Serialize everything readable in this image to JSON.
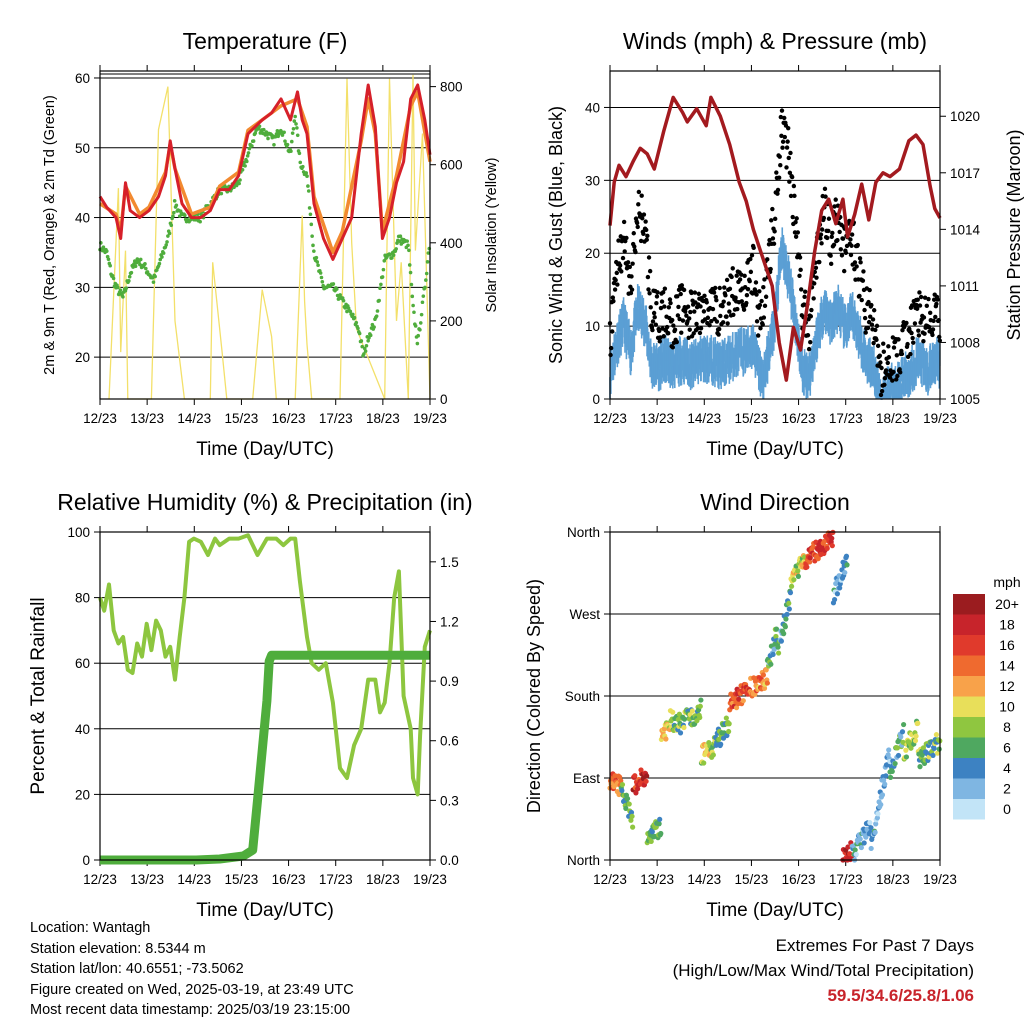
{
  "colors": {
    "temp_2m": "#d6202a",
    "temp_9m": "#f28a30",
    "dewpoint": "#4fad3c",
    "insolation": "#f3e06a",
    "wind_sustained": "#5b9fd4",
    "wind_gust": "#000000",
    "pressure": "#a31a1f",
    "humidity": "#8dc63f",
    "precip": "#4fad3c",
    "extremes_text": "#c8242b"
  },
  "time_ticks": [
    "12/23",
    "13/23",
    "14/23",
    "15/23",
    "16/23",
    "17/23",
    "18/23",
    "19/23"
  ],
  "chart_data": [
    {
      "type": "line",
      "title": "Temperature (F)",
      "xlabel": "Time (Day/UTC)",
      "ylabel": "2m & 9m T (Red, Orange) & 2m Td (Green)",
      "y2label": "Solar Insolation (Yellow)",
      "x_range_days": [
        12.96,
        19.96
      ],
      "ylim": [
        14,
        61
      ],
      "y_ticks": [
        20,
        30,
        40,
        50,
        60
      ],
      "y2lim": [
        0,
        840
      ],
      "y2_ticks": [
        0,
        200,
        400,
        600,
        800
      ],
      "series": [
        {
          "key": "t2m",
          "x": [
            12.96,
            13.1,
            13.3,
            13.4,
            13.5,
            13.6,
            13.8,
            14.0,
            14.2,
            14.35,
            14.45,
            14.55,
            14.7,
            14.9,
            15.1,
            15.3,
            15.5,
            15.7,
            15.9,
            16.1,
            16.4,
            16.6,
            16.8,
            17.0,
            17.15,
            17.25,
            17.35,
            17.5,
            17.7,
            17.9,
            18.1,
            18.3,
            18.5,
            18.65,
            18.8,
            18.95,
            19.1,
            19.25,
            19.4,
            19.55,
            19.7,
            19.85,
            19.96
          ],
          "y": [
            43,
            41.5,
            40,
            37,
            45,
            41,
            40,
            41,
            43,
            46,
            51,
            47,
            42,
            40,
            40,
            41,
            44,
            44,
            46,
            52,
            54,
            55,
            57,
            54,
            58,
            54,
            52,
            42,
            37,
            34,
            37,
            40,
            52,
            59,
            53,
            37,
            40,
            45,
            48,
            57,
            59,
            54,
            49
          ]
        },
        {
          "key": "t9m",
          "x": [
            12.96,
            13.3,
            13.4,
            13.5,
            13.8,
            14.0,
            14.35,
            14.45,
            14.55,
            14.9,
            15.3,
            15.5,
            15.9,
            16.1,
            16.4,
            16.8,
            17.15,
            17.35,
            17.5,
            17.9,
            18.1,
            18.5,
            18.65,
            18.8,
            18.95,
            19.25,
            19.55,
            19.7,
            19.96
          ],
          "y": [
            42,
            40.5,
            38,
            44.5,
            40.5,
            41.5,
            46.5,
            50.5,
            47,
            40.5,
            41.5,
            44.5,
            46.5,
            52.5,
            54,
            56,
            57,
            53,
            43,
            35,
            38,
            51,
            57,
            52,
            38,
            46,
            56,
            58,
            48
          ]
        },
        {
          "key": "td2m",
          "x": [
            12.96,
            13.1,
            13.2,
            13.3,
            13.45,
            13.6,
            13.75,
            13.9,
            14.1,
            14.25,
            14.4,
            14.55,
            14.7,
            14.9,
            15.1,
            15.3,
            15.5,
            15.7,
            15.9,
            16.1,
            16.3,
            16.5,
            16.65,
            16.8,
            17.0,
            17.1,
            17.2,
            17.35,
            17.5,
            17.7,
            17.9,
            18.1,
            18.3,
            18.45,
            18.55,
            18.65,
            18.8,
            19.0,
            19.2,
            19.3,
            19.5,
            19.6,
            19.7,
            19.85,
            19.96
          ],
          "y": [
            36,
            35,
            32,
            30,
            28.5,
            32,
            34,
            33,
            31,
            34,
            37,
            42,
            40,
            40,
            40,
            42,
            44,
            44,
            45,
            49,
            53,
            52,
            51,
            53,
            49,
            55,
            48,
            46,
            35,
            30,
            30,
            28,
            26,
            24,
            20,
            23,
            25,
            34,
            35,
            37,
            36,
            27,
            22,
            30,
            37
          ]
        },
        {
          "key": "insolation",
          "x": [
            13.15,
            13.35,
            13.4,
            13.5,
            13.55,
            14.05,
            14.2,
            14.4,
            14.55,
            14.75,
            15.3,
            15.35,
            15.55,
            15.65,
            16.2,
            16.4,
            16.6,
            16.7,
            17.1,
            17.25,
            17.3,
            17.35,
            17.45,
            18.05,
            18.2,
            18.3,
            18.4,
            19.0,
            19.1,
            19.25,
            19.35,
            19.5,
            19.6,
            19.65,
            19.8,
            19.96
          ],
          "y": [
            0,
            540,
            120,
            380,
            0,
            0,
            690,
            800,
            200,
            0,
            0,
            350,
            120,
            0,
            0,
            280,
            160,
            0,
            0,
            470,
            250,
            140,
            0,
            0,
            820,
            400,
            180,
            0,
            820,
            200,
            350,
            0,
            830,
            380,
            680,
            0
          ]
        }
      ]
    },
    {
      "type": "line",
      "title": "Winds (mph) & Pressure (mb)",
      "xlabel": "Time (Day/UTC)",
      "ylabel": "Sonic Wind & Gust (Blue, Black)",
      "y2label": "Station Pressure (Maroon)",
      "x_range_days": [
        12.96,
        19.96
      ],
      "ylim": [
        0,
        45
      ],
      "y_ticks": [
        0,
        10,
        20,
        30,
        40
      ],
      "y2lim": [
        1005,
        1022.4
      ],
      "y2_ticks": [
        1005,
        1008,
        1011,
        1014,
        1017,
        1020
      ],
      "series": [
        {
          "key": "gust",
          "x": [
            12.96,
            13.1,
            13.25,
            13.4,
            13.55,
            13.7,
            13.85,
            14.0,
            14.15,
            14.3,
            14.5,
            14.7,
            14.9,
            15.1,
            15.3,
            15.5,
            15.7,
            15.85,
            16.0,
            16.1,
            16.2,
            16.3,
            16.45,
            16.6,
            16.75,
            16.9,
            17.05,
            17.2,
            17.35,
            17.5,
            17.65,
            17.8,
            17.95,
            18.1,
            18.25,
            18.4,
            18.55,
            18.7,
            18.85,
            19.0,
            19.15,
            19.3,
            19.5,
            19.7,
            19.85,
            19.96
          ],
          "y": [
            8,
            18,
            22,
            15,
            26,
            24,
            12,
            11,
            12,
            10,
            13,
            11,
            12,
            13,
            12,
            14,
            16,
            15,
            18,
            12,
            12,
            18,
            25,
            38,
            34,
            24,
            12,
            10,
            20,
            26,
            22,
            25,
            20,
            22,
            17,
            12,
            11,
            3,
            6,
            5,
            7,
            9,
            12,
            10,
            12,
            10
          ]
        },
        {
          "key": "sustained",
          "x": [
            12.96,
            13.1,
            13.25,
            13.4,
            13.55,
            13.7,
            13.85,
            14.0,
            14.15,
            14.3,
            14.5,
            14.7,
            14.9,
            15.1,
            15.3,
            15.5,
            15.7,
            15.85,
            16.0,
            16.1,
            16.2,
            16.3,
            16.45,
            16.6,
            16.75,
            16.9,
            17.05,
            17.2,
            17.35,
            17.5,
            17.65,
            17.8,
            17.95,
            18.1,
            18.25,
            18.4,
            18.55,
            18.7,
            18.85,
            19.0,
            19.15,
            19.3,
            19.5,
            19.7,
            19.85,
            19.96
          ],
          "y": [
            5,
            9,
            12,
            8,
            14,
            12,
            6,
            6,
            7,
            6,
            7,
            6,
            7,
            7,
            6,
            7,
            8,
            8,
            9,
            6,
            4,
            7,
            12,
            22,
            18,
            12,
            5,
            5,
            10,
            14,
            12,
            14,
            11,
            13,
            10,
            7,
            6,
            1,
            3,
            3,
            4,
            5,
            7,
            5,
            7,
            6
          ]
        },
        {
          "key": "pressure",
          "x": [
            12.96,
            13.05,
            13.15,
            13.3,
            13.45,
            13.6,
            13.75,
            13.9,
            14.1,
            14.3,
            14.5,
            14.6,
            14.8,
            15.0,
            15.1,
            15.3,
            15.5,
            15.7,
            15.85,
            16.0,
            16.2,
            16.4,
            16.55,
            16.7,
            16.85,
            17.0,
            17.15,
            17.3,
            17.45,
            17.6,
            17.75,
            17.9,
            18.0,
            18.15,
            18.3,
            18.45,
            18.6,
            18.75,
            18.9,
            19.1,
            19.3,
            19.45,
            19.6,
            19.75,
            19.85,
            19.96
          ],
          "y": [
            1014.2,
            1016.5,
            1017.4,
            1016.8,
            1017.6,
            1018.3,
            1018.0,
            1017.2,
            1019.2,
            1021.0,
            1020.2,
            1019.7,
            1020.4,
            1019.5,
            1021.0,
            1020.0,
            1018.5,
            1016.5,
            1015.5,
            1014.0,
            1012.5,
            1011.0,
            1008.0,
            1006.0,
            1008.8,
            1007.6,
            1010.0,
            1012.8,
            1015.0,
            1015.6,
            1014.3,
            1015.6,
            1013.6,
            1014.8,
            1016.4,
            1014.5,
            1016.5,
            1017.0,
            1016.8,
            1017.2,
            1018.7,
            1019.0,
            1018.5,
            1016.3,
            1015.1,
            1014.6
          ]
        }
      ]
    },
    {
      "type": "line",
      "title": "Relative Humidity (%) & Precipitation (in)",
      "xlabel": "Time (Day/UTC)",
      "ylabel": "Percent & Total Rainfall",
      "x_range_days": [
        12.96,
        19.96
      ],
      "ylim": [
        0,
        100
      ],
      "y_ticks": [
        0,
        20,
        40,
        60,
        80,
        100
      ],
      "y2lim": [
        0,
        1.65
      ],
      "y2_ticks": [
        "0.0",
        "0.3",
        "0.6",
        "0.9",
        "1.2",
        "1.5"
      ],
      "series": [
        {
          "key": "rh",
          "x": [
            12.96,
            13.05,
            13.15,
            13.25,
            13.35,
            13.45,
            13.55,
            13.65,
            13.75,
            13.85,
            13.95,
            14.05,
            14.15,
            14.25,
            14.35,
            14.45,
            14.55,
            14.65,
            14.75,
            14.85,
            14.95,
            15.1,
            15.25,
            15.4,
            15.5,
            15.7,
            15.9,
            16.1,
            16.3,
            16.5,
            16.7,
            16.85,
            17.0,
            17.1,
            17.2,
            17.35,
            17.45,
            17.6,
            17.75,
            17.9,
            18.05,
            18.2,
            18.35,
            18.5,
            18.65,
            18.8,
            18.9,
            19.0,
            19.1,
            19.2,
            19.3,
            19.4,
            19.55,
            19.6,
            19.7,
            19.75,
            19.85,
            19.96
          ],
          "y": [
            80,
            76,
            84,
            70,
            66,
            68,
            58,
            57,
            66,
            62,
            72,
            64,
            73,
            70,
            62,
            65,
            55,
            68,
            80,
            97,
            98,
            97,
            93,
            98,
            96,
            98,
            98,
            99,
            93,
            98,
            98,
            96,
            98,
            98,
            85,
            68,
            60,
            58,
            60,
            48,
            28,
            25,
            35,
            40,
            55,
            55,
            45,
            48,
            60,
            80,
            88,
            50,
            40,
            25,
            20,
            38,
            65,
            70
          ]
        },
        {
          "key": "precip",
          "x": [
            12.96,
            14.0,
            15.0,
            15.5,
            16.0,
            16.2,
            16.3,
            16.4,
            16.5,
            16.55,
            16.6,
            19.96
          ],
          "y": [
            0.0,
            0.0,
            0.0,
            0.005,
            0.02,
            0.05,
            0.3,
            0.55,
            0.8,
            1.0,
            1.03,
            1.03
          ]
        }
      ]
    },
    {
      "type": "scatter",
      "title": "Wind Direction",
      "xlabel": "Time (Day/UTC)",
      "ylabel": "Direction (Colored By Speed)",
      "x_range_days": [
        12.96,
        19.96
      ],
      "ylim": [
        0,
        360
      ],
      "y_ticks": [
        "North",
        "East",
        "South",
        "West",
        "North"
      ],
      "legend_title": "mph",
      "legend_labels": [
        "20+",
        "18",
        "16",
        "14",
        "12",
        "10",
        "8",
        "6",
        "4",
        "2",
        "0"
      ],
      "legend_colors": [
        "#9b1c1f",
        "#c7242b",
        "#e03a2c",
        "#ef6a2f",
        "#f8a24a",
        "#e8df5a",
        "#8fc640",
        "#4fa860",
        "#3d82c2",
        "#7fb6e2",
        "#c2e4f7"
      ],
      "segments": [
        {
          "x0": 12.96,
          "x1": 13.2,
          "dir0": 90,
          "dir1": 80,
          "speed": 14
        },
        {
          "x0": 13.2,
          "x1": 13.45,
          "dir0": 75,
          "dir1": 45,
          "speed": 6
        },
        {
          "x0": 13.45,
          "x1": 13.75,
          "dir0": 80,
          "dir1": 95,
          "speed": 17
        },
        {
          "x0": 13.75,
          "x1": 14.05,
          "dir0": 20,
          "dir1": 40,
          "speed": 6
        },
        {
          "x0": 14.05,
          "x1": 14.3,
          "dir0": 130,
          "dir1": 160,
          "speed": 10
        },
        {
          "x0": 14.3,
          "x1": 14.9,
          "dir0": 145,
          "dir1": 165,
          "speed": 7
        },
        {
          "x0": 14.9,
          "x1": 15.2,
          "dir0": 115,
          "dir1": 125,
          "speed": 9
        },
        {
          "x0": 15.2,
          "x1": 15.5,
          "dir0": 130,
          "dir1": 150,
          "speed": 6
        },
        {
          "x0": 15.5,
          "x1": 15.95,
          "dir0": 170,
          "dir1": 190,
          "speed": 15
        },
        {
          "x0": 15.95,
          "x1": 16.3,
          "dir0": 190,
          "dir1": 200,
          "speed": 13
        },
        {
          "x0": 16.3,
          "x1": 16.5,
          "dir0": 210,
          "dir1": 250,
          "speed": 5
        },
        {
          "x0": 16.5,
          "x1": 16.8,
          "dir0": 230,
          "dir1": 290,
          "speed": 5
        },
        {
          "x0": 16.8,
          "x1": 17.1,
          "dir0": 300,
          "dir1": 335,
          "speed": 9
        },
        {
          "x0": 17.1,
          "x1": 17.7,
          "dir0": 330,
          "dir1": 355,
          "speed": 16
        },
        {
          "x0": 17.7,
          "x1": 18.0,
          "dir0": 290,
          "dir1": 330,
          "speed": 3
        },
        {
          "x0": 17.9,
          "x1": 18.1,
          "dir0": 0,
          "dir1": 10,
          "speed": 18
        },
        {
          "x0": 18.1,
          "x1": 18.5,
          "dir0": 5,
          "dir1": 40,
          "speed": 3
        },
        {
          "x0": 18.5,
          "x1": 18.9,
          "dir0": 20,
          "dir1": 120,
          "speed": 3
        },
        {
          "x0": 18.9,
          "x1": 19.2,
          "dir0": 100,
          "dir1": 140,
          "speed": 5
        },
        {
          "x0": 19.2,
          "x1": 19.5,
          "dir0": 120,
          "dir1": 145,
          "speed": 8
        },
        {
          "x0": 19.5,
          "x1": 19.96,
          "dir0": 110,
          "dir1": 130,
          "speed": 7
        }
      ]
    }
  ],
  "info": {
    "location": "Location: Wantagh",
    "elevation": "Station elevation: 8.5344 m",
    "latlon": "Station lat/lon: 40.6551; -73.5062",
    "created": "Figure created on Wed, 2025-03-19, at 23:49 UTC",
    "recent": "Most recent data timestamp: 2025/03/19 23:15:00"
  },
  "extremes": {
    "title": "Extremes For Past 7 Days",
    "subtitle": "(High/Low/Max Wind/Total Precipitation)",
    "values": "59.5/34.6/25.8/1.06"
  }
}
